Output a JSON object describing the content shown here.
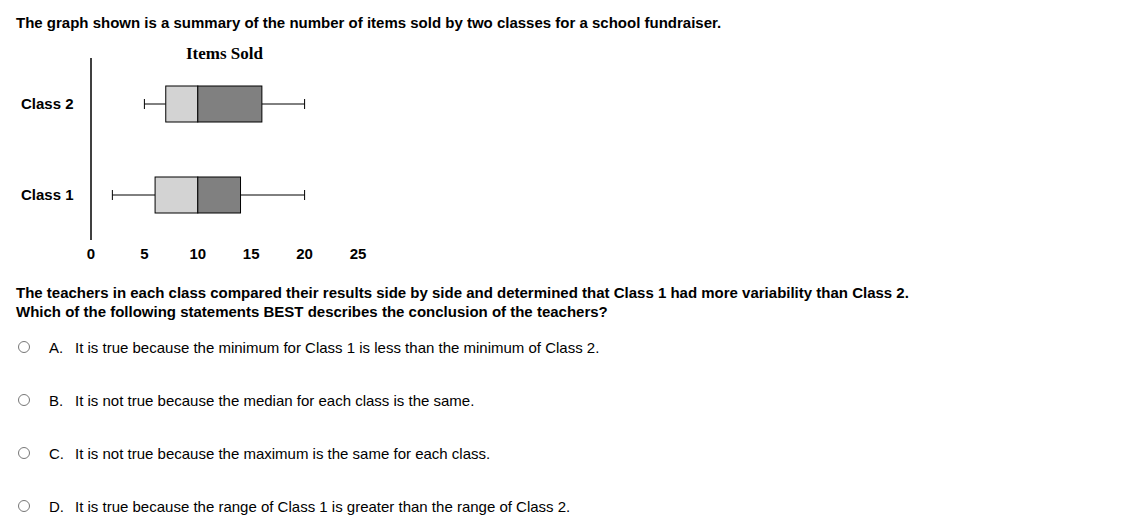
{
  "header": "The graph shown is a summary of the number of items sold by two classes for a school fundraiser.",
  "chart_data": {
    "type": "box",
    "title": "Items Sold",
    "categories": [
      "Class 2",
      "Class 1"
    ],
    "min": [
      5,
      2
    ],
    "q1": [
      7,
      6
    ],
    "median": [
      10,
      10
    ],
    "q3": [
      16,
      14
    ],
    "max": [
      20,
      20
    ],
    "colors": [
      "#d3d3d3",
      "#808080"
    ],
    "xlim": [
      0,
      25
    ],
    "xticks": [
      0,
      5,
      10,
      15,
      20,
      25
    ],
    "grid": false
  },
  "question": [
    "The teachers in each class compared their results side by side and determined that Class 1 had more variability than Class 2.",
    "Which of the following statements BEST describes the conclusion of the teachers?"
  ],
  "options": [
    {
      "letter": "A.",
      "text": "It is true because the minimum for Class 1 is less than the minimum of Class 2."
    },
    {
      "letter": "B.",
      "text": "It is not true because the median for each class is the same."
    },
    {
      "letter": "C.",
      "text": "It is not true because the maximum is the same for each class."
    },
    {
      "letter": "D.",
      "text": "It is true because the range of Class 1 is greater than the range of Class 2."
    }
  ]
}
